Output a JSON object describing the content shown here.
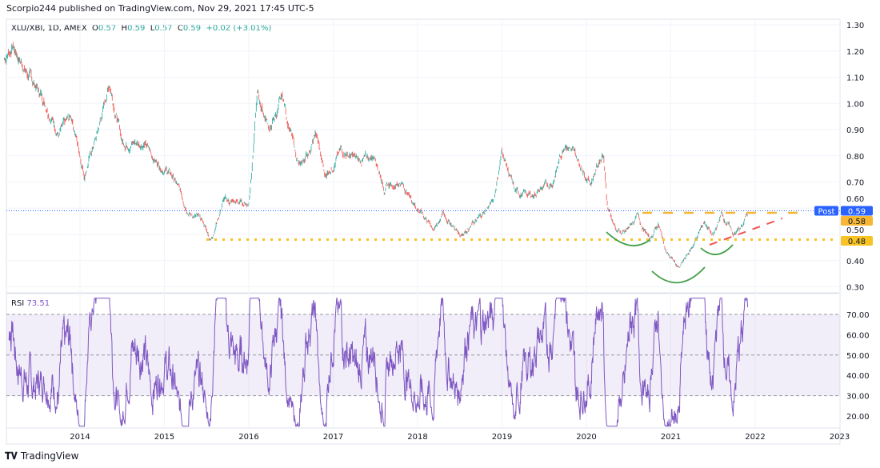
{
  "header": {
    "published": "Scorpio244 published on TradingView.com, Nov 29, 2021 17:45 UTC-5"
  },
  "legend": {
    "symbol": "XLU/XBI, 1D, AMEX",
    "o_label": "O",
    "o": "0.57",
    "h_label": "H",
    "h": "0.59",
    "l_label": "L",
    "l": "0.57",
    "c_label": "C",
    "c": "0.59",
    "change": "+0.02 (+3.01%)"
  },
  "rsi": {
    "label": "RSI",
    "value": "73.51"
  },
  "footer": {
    "brand": "TradingView"
  },
  "colors": {
    "up": "#26a69a",
    "down": "#ef5350",
    "rsi": "#7e57c2",
    "support": "#f7c325",
    "resistance": "#f7b633",
    "trend": "#ef5350",
    "arc": "#43a047",
    "last": "#2962ff"
  },
  "chart_data": [
    {
      "type": "candlestick",
      "title": "XLU/XBI, 1D, AMEX",
      "ylim": [
        0.27,
        1.32
      ],
      "price_ticks": [
        "1.30",
        "1.20",
        "1.10",
        "1.00",
        "0.90",
        "0.80",
        "0.70",
        "0.60",
        "0.50",
        "0.40",
        "0.30"
      ],
      "x_ticks": [
        "2014",
        "2015",
        "2016",
        "2017",
        "2018",
        "2019",
        "2020",
        "2021",
        "2022",
        "2023"
      ],
      "grid": true,
      "series_approx": [
        [
          2013.1,
          1.17
        ],
        [
          2013.2,
          1.22
        ],
        [
          2013.4,
          1.1
        ],
        [
          2013.6,
          1.0
        ],
        [
          2013.75,
          0.88
        ],
        [
          2013.9,
          0.95
        ],
        [
          2014.05,
          0.73
        ],
        [
          2014.2,
          0.88
        ],
        [
          2014.35,
          1.08
        ],
        [
          2014.5,
          0.85
        ],
        [
          2014.75,
          0.85
        ],
        [
          2014.9,
          0.78
        ],
        [
          2015.1,
          0.72
        ],
        [
          2015.3,
          0.58
        ],
        [
          2015.45,
          0.55
        ],
        [
          2015.55,
          0.48
        ],
        [
          2015.7,
          0.63
        ],
        [
          2015.85,
          0.62
        ],
        [
          2016.0,
          0.62
        ],
        [
          2016.1,
          1.03
        ],
        [
          2016.25,
          0.9
        ],
        [
          2016.4,
          1.02
        ],
        [
          2016.5,
          0.88
        ],
        [
          2016.6,
          0.75
        ],
        [
          2016.8,
          0.88
        ],
        [
          2016.9,
          0.72
        ],
        [
          2017.1,
          0.82
        ],
        [
          2017.3,
          0.78
        ],
        [
          2017.5,
          0.8
        ],
        [
          2017.6,
          0.68
        ],
        [
          2017.8,
          0.7
        ],
        [
          2018.0,
          0.6
        ],
        [
          2018.2,
          0.52
        ],
        [
          2018.3,
          0.58
        ],
        [
          2018.5,
          0.5
        ],
        [
          2018.7,
          0.55
        ],
        [
          2018.9,
          0.63
        ],
        [
          2019.0,
          0.82
        ],
        [
          2019.15,
          0.66
        ],
        [
          2019.35,
          0.65
        ],
        [
          2019.6,
          0.7
        ],
        [
          2019.75,
          0.86
        ],
        [
          2019.9,
          0.78
        ],
        [
          2020.05,
          0.7
        ],
        [
          2020.2,
          0.82
        ],
        [
          2020.25,
          0.6
        ],
        [
          2020.35,
          0.52
        ],
        [
          2020.45,
          0.5
        ],
        [
          2020.6,
          0.57
        ],
        [
          2020.75,
          0.48
        ],
        [
          2020.85,
          0.54
        ],
        [
          2020.95,
          0.43
        ],
        [
          2021.1,
          0.37
        ],
        [
          2021.25,
          0.45
        ],
        [
          2021.4,
          0.55
        ],
        [
          2021.5,
          0.49
        ],
        [
          2021.6,
          0.58
        ],
        [
          2021.75,
          0.5
        ],
        [
          2021.85,
          0.53
        ],
        [
          2021.91,
          0.59
        ]
      ],
      "price_labels": [
        {
          "text": "0.59",
          "tag": "Post"
        },
        {
          "text": "0.58"
        },
        {
          "text": "0.48"
        }
      ],
      "levels": {
        "support": 0.48,
        "resistance": 0.59
      }
    },
    {
      "type": "line",
      "title": "RSI",
      "ylim": [
        15,
        78
      ],
      "ticks": [
        "70.00",
        "60.00",
        "50.00",
        "40.00",
        "30.00",
        "20.00"
      ],
      "band": [
        30,
        70
      ],
      "last": 73.51
    }
  ]
}
